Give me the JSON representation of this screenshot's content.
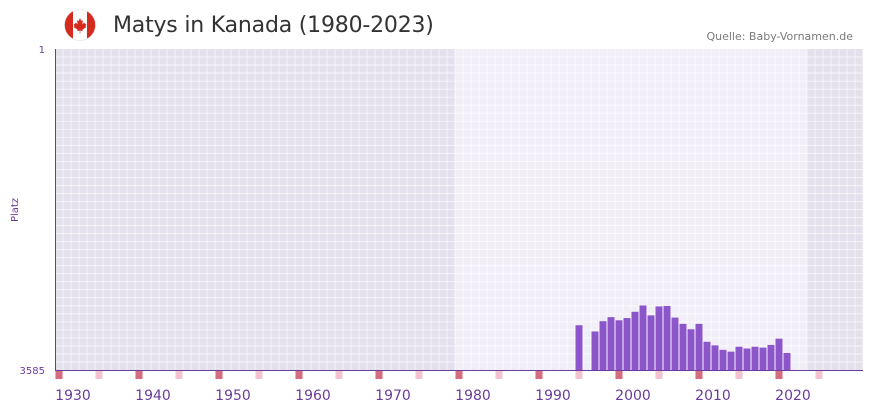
{
  "header": {
    "title": "Matys in Kanada (1980-2023)",
    "source": "Quelle: Baby-Vornamen.de"
  },
  "colors": {
    "bar": "#8c55c9",
    "axis_text": "#6a3d9a",
    "tick_year": "#6a3d9a",
    "marker_decade": "#d96b7e",
    "marker_minor": "#f1c4cf",
    "bg_outside": "#e4e0ec",
    "bg_inside": "#f1eef7",
    "grid": "#ffffff"
  },
  "chart_data": {
    "type": "bar",
    "title": "Matys in Kanada (1980-2023)",
    "ylabel": "Platz",
    "xlabel": "",
    "y_reversed": true,
    "ylim": [
      1,
      3585
    ],
    "xlim": [
      1928,
      2029
    ],
    "highlight_range": [
      1978,
      2022
    ],
    "x_ticks": [
      1930,
      1940,
      1950,
      1960,
      1970,
      1980,
      1990,
      2000,
      2010,
      2020
    ],
    "y_ticks": [
      1,
      3585
    ],
    "x": [
      1993,
      1995,
      1996,
      1997,
      1998,
      1999,
      2000,
      2001,
      2002,
      2003,
      2004,
      2005,
      2006,
      2007,
      2008,
      2009,
      2010,
      2011,
      2012,
      2013,
      2014,
      2015,
      2016,
      2017,
      2018,
      2019
    ],
    "values": [
      3085,
      3155,
      3040,
      2995,
      3030,
      3005,
      2935,
      2865,
      2975,
      2875,
      2870,
      3000,
      3070,
      3130,
      3070,
      3270,
      3310,
      3360,
      3380,
      3325,
      3345,
      3325,
      3335,
      3305,
      3235,
      3395
    ]
  }
}
